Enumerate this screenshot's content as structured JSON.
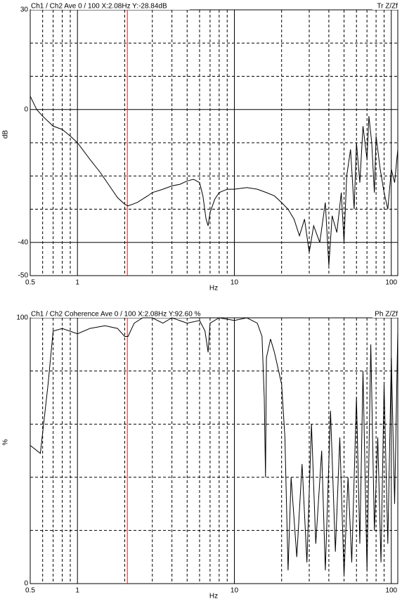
{
  "chart_data": [
    {
      "type": "line",
      "title": "Ch1 / Ch2  Ave 0 / 100  X:2.08Hz  Y:-28.84dB",
      "mode_label": "Tr Z/Zf",
      "ylabel": "dB",
      "xlabel": "Hz",
      "log_x": true,
      "cursor_x": 2.08,
      "cursor_color": "#e02020",
      "xlim": [
        0.5,
        110
      ],
      "xticks": [
        0.5,
        1,
        10,
        100
      ],
      "xminor": [
        0.6,
        0.7,
        0.8,
        0.9,
        2,
        3,
        4,
        5,
        6,
        7,
        8,
        9,
        20,
        30,
        40,
        50,
        60,
        70,
        80,
        90
      ],
      "ylim": [
        -50,
        30
      ],
      "yticks": [
        -50,
        -40,
        0,
        30
      ],
      "ygrid": [
        -30,
        -20,
        -10,
        10,
        20
      ],
      "series": [
        {
          "color": "#000000",
          "x": [
            0.5,
            0.55,
            0.6,
            0.7,
            0.8,
            0.9,
            1.0,
            1.2,
            1.4,
            1.6,
            1.8,
            2.0,
            2.1,
            2.4,
            2.8,
            3.0,
            3.5,
            4.0,
            4.5,
            5.0,
            5.5,
            6.0,
            6.3,
            6.6,
            6.8,
            7.0,
            7.5,
            8,
            9,
            10,
            12,
            14,
            16,
            18,
            20,
            22,
            24,
            26,
            28,
            30,
            32,
            35,
            38,
            40,
            42,
            45,
            48,
            50,
            52,
            55,
            58,
            60,
            63,
            66,
            70,
            72,
            75,
            78,
            80,
            85,
            90,
            95,
            100,
            105,
            110
          ],
          "values": [
            4,
            0,
            -2,
            -5,
            -6,
            -8,
            -10,
            -15,
            -19,
            -23,
            -26.5,
            -28.5,
            -29,
            -28,
            -26,
            -25,
            -24,
            -23,
            -22.5,
            -21.5,
            -21,
            -22,
            -26,
            -33,
            -35,
            -31,
            -27,
            -25,
            -24,
            -24,
            -23.5,
            -24,
            -25,
            -26,
            -28,
            -30,
            -33,
            -38,
            -33,
            -43,
            -35,
            -40,
            -28,
            -47,
            -32,
            -37,
            -25,
            -40,
            -20,
            -12,
            -30,
            -10,
            -22,
            -5,
            -15,
            -2,
            -10,
            -25,
            -8,
            -18,
            -25,
            -30,
            -18,
            -22,
            -12
          ]
        }
      ]
    },
    {
      "type": "line",
      "title": "Ch1 / Ch2  Coherence Ave 0 / 100  X:2.08Hz  Y:92.60 %",
      "mode_label": "Ph Z/Zf",
      "ylabel": "%",
      "xlabel": "Hz",
      "log_x": true,
      "cursor_x": 2.08,
      "cursor_color": "#e02020",
      "xlim": [
        0.5,
        110
      ],
      "xticks": [
        0.5,
        1,
        10,
        100
      ],
      "xminor": [
        0.6,
        0.7,
        0.8,
        0.9,
        2,
        3,
        4,
        5,
        6,
        7,
        8,
        9,
        20,
        30,
        40,
        50,
        60,
        70,
        80,
        90
      ],
      "ylim": [
        0,
        100
      ],
      "yticks": [
        0,
        100
      ],
      "ygrid": [
        20,
        40,
        60,
        80
      ],
      "series": [
        {
          "color": "#000000",
          "x": [
            0.5,
            0.58,
            0.65,
            0.7,
            0.8,
            1.0,
            1.2,
            1.5,
            1.8,
            2.0,
            2.1,
            2.3,
            2.6,
            3,
            3.5,
            4,
            5,
            6,
            6.5,
            6.8,
            7,
            8,
            10,
            12,
            14,
            15,
            15.5,
            15.8,
            16,
            17,
            18,
            20,
            21,
            22,
            23,
            25,
            27,
            29,
            31,
            33,
            36,
            38,
            41,
            44,
            47,
            50,
            53,
            56,
            60,
            63,
            66,
            70,
            74,
            78,
            82,
            86,
            90,
            95,
            100,
            105,
            110
          ],
          "values": [
            52,
            49,
            75,
            95,
            96,
            94,
            96,
            97,
            96,
            93,
            93,
            98,
            100,
            100,
            98,
            100,
            98,
            99,
            95,
            87,
            98,
            100,
            99,
            100,
            98,
            93,
            70,
            40,
            85,
            92,
            87,
            75,
            55,
            5,
            40,
            10,
            45,
            8,
            60,
            15,
            50,
            5,
            65,
            12,
            55,
            3,
            40,
            8,
            70,
            15,
            80,
            5,
            90,
            20,
            55,
            8,
            75,
            15,
            85,
            30,
            95
          ]
        }
      ]
    }
  ]
}
